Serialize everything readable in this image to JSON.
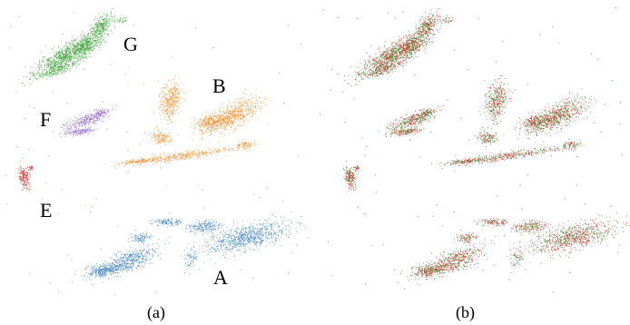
{
  "colors": {
    "cluster_A": "#3a7fc1",
    "cluster_B": "#f28c28",
    "cluster_E": "#d43a3a",
    "cluster_F": "#9a6ccc",
    "cluster_G": "#3fa33a",
    "mix_green": "#2f8f2a",
    "mix_red": "#e8222a",
    "mix_brown": "#7a4a1a"
  },
  "panels": [
    {
      "caption": "(a)",
      "clusters": [
        {
          "label": "A",
          "color_key": "cluster_A"
        },
        {
          "label": "B",
          "color_key": "cluster_B"
        },
        {
          "label": "E",
          "color_key": "cluster_E"
        },
        {
          "label": "F",
          "color_key": "cluster_F"
        },
        {
          "label": "G",
          "color_key": "cluster_G"
        }
      ]
    },
    {
      "caption": "(b)"
    }
  ]
}
